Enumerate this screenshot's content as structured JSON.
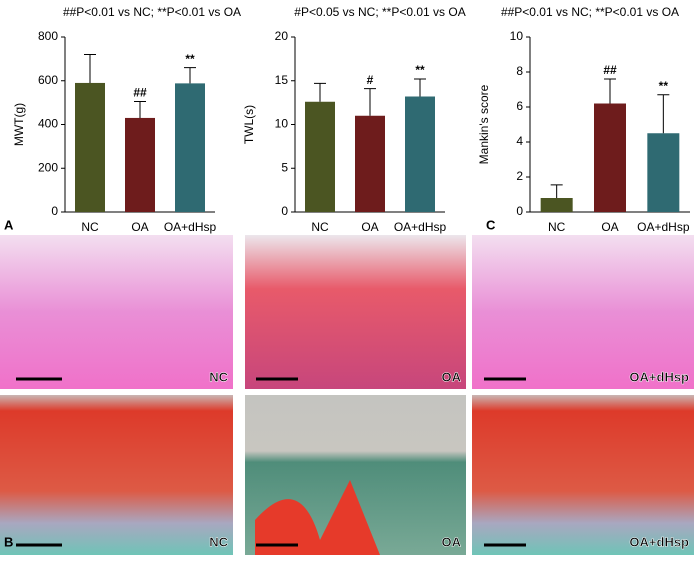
{
  "chart_data": [
    {
      "type": "bar",
      "title": "##P<0.01 vs NC; **P<0.01 vs OA",
      "y_label": "MWT(g)",
      "categories": [
        "NC",
        "OA",
        "OA+dHsp"
      ],
      "values": [
        590,
        430,
        588
      ],
      "errors": [
        130,
        75,
        72
      ],
      "colors": [
        "#4b5522",
        "#6e1c1c",
        "#2f6a72"
      ],
      "annotations": [
        null,
        "##",
        "**"
      ],
      "ylim": [
        0,
        800
      ],
      "yticks": [
        0,
        200,
        400,
        600,
        800
      ]
    },
    {
      "type": "bar",
      "title": "#P<0.05 vs NC; **P<0.01 vs OA",
      "y_label": "TWL(s)",
      "categories": [
        "NC",
        "OA",
        "OA+dHsp"
      ],
      "values": [
        12.6,
        11.0,
        13.2
      ],
      "errors": [
        2.1,
        3.1,
        2.0
      ],
      "colors": [
        "#4b5522",
        "#6e1c1c",
        "#2f6a72"
      ],
      "annotations": [
        null,
        "#",
        "**"
      ],
      "ylim": [
        0,
        20
      ],
      "yticks": [
        0,
        5,
        10,
        15,
        20
      ]
    },
    {
      "type": "bar",
      "title": "##P<0.01 vs NC; **P<0.01 vs OA",
      "y_label": "Mankin's score",
      "categories": [
        "NC",
        "OA",
        "OA+dHsp"
      ],
      "values": [
        0.8,
        6.2,
        4.5
      ],
      "errors": [
        0.75,
        1.4,
        2.2
      ],
      "colors": [
        "#4b5522",
        "#6e1c1c",
        "#2f6a72"
      ],
      "annotations": [
        null,
        "##",
        "**"
      ],
      "ylim": [
        0,
        10
      ],
      "yticks": [
        0,
        2,
        4,
        6,
        8,
        10
      ]
    }
  ],
  "panel_letters": [
    "A",
    "C",
    "B"
  ],
  "histology": {
    "row1": [
      "NC",
      "OA",
      "OA+dHsp"
    ],
    "row2": [
      "NC",
      "OA",
      "OA+dHsp"
    ]
  }
}
